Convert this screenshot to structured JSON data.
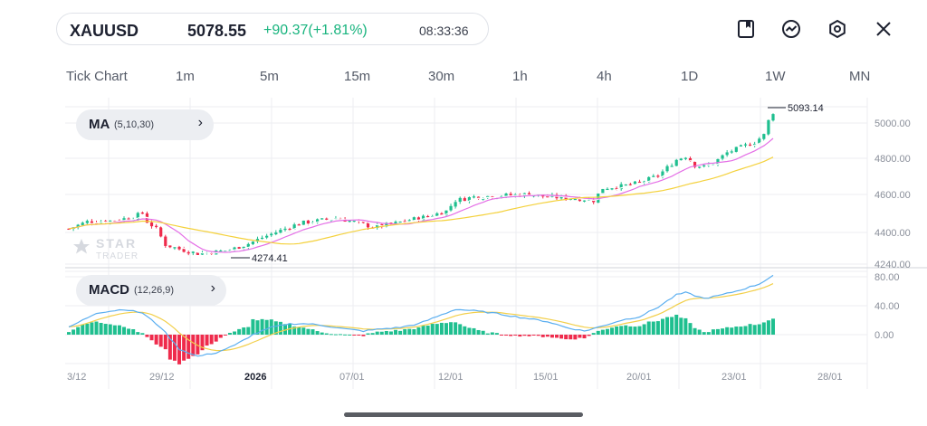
{
  "quote": {
    "symbol": "XAUUSD",
    "price": "5078.55",
    "change": "+90.37(+1.81%)",
    "time": "08:33:36",
    "change_color": "#18b47e"
  },
  "toolbar_icons": [
    "bookmark-icon",
    "indicator-icon",
    "settings-icon",
    "close-icon"
  ],
  "timeframes": [
    "Tick Chart",
    "1m",
    "5m",
    "15m",
    "30m",
    "1h",
    "4h",
    "1D",
    "1W",
    "MN"
  ],
  "watermark": {
    "brand": "STAR",
    "sub": "TRADER"
  },
  "ma_indicator": {
    "name": "MA",
    "params": "(5,10,30)"
  },
  "macd_indicator": {
    "name": "MACD",
    "params": "(12,26,9)"
  },
  "colors": {
    "up": "#1fbf8f",
    "down": "#ef2b4c",
    "ma5": "#ffffff",
    "ma10": "#e46ee6",
    "ma30": "#f4d13c",
    "macd_line": "#5aaef0",
    "signal_line": "#f2cf4a",
    "grid": "#eceef2"
  },
  "chart_data": {
    "type": "candlestick",
    "price_axis": {
      "ticks": [
        "5000.00",
        "4800.00",
        "4600.00",
        "4400.00",
        "4240.00"
      ],
      "range": [
        4230,
        5120
      ]
    },
    "macd_axis": {
      "ticks": [
        "80.00",
        "40.00",
        "0.00"
      ],
      "range": [
        -40,
        90
      ]
    },
    "date_labels": [
      "3/12",
      "29/12",
      "2026",
      "07/01",
      "12/01",
      "15/01",
      "20/01",
      "23/01",
      "28/01"
    ],
    "annotations": {
      "high": "5093.14",
      "low": "4274.41"
    },
    "price_path": [
      [
        0,
        4430
      ],
      [
        4,
        4470
      ],
      [
        9,
        4475
      ],
      [
        14,
        4495
      ],
      [
        16,
        4520
      ],
      [
        17,
        4470
      ],
      [
        19,
        4430
      ],
      [
        21,
        4340
      ],
      [
        24,
        4315
      ],
      [
        28,
        4290
      ],
      [
        32,
        4300
      ],
      [
        35,
        4310
      ],
      [
        39,
        4345
      ],
      [
        42,
        4380
      ],
      [
        46,
        4420
      ],
      [
        50,
        4460
      ],
      [
        54,
        4475
      ],
      [
        58,
        4490
      ],
      [
        62,
        4470
      ],
      [
        66,
        4440
      ],
      [
        70,
        4455
      ],
      [
        74,
        4480
      ],
      [
        78,
        4500
      ],
      [
        82,
        4530
      ],
      [
        84,
        4590
      ],
      [
        88,
        4610
      ],
      [
        92,
        4615
      ],
      [
        96,
        4620
      ],
      [
        100,
        4625
      ],
      [
        104,
        4610
      ],
      [
        108,
        4605
      ],
      [
        111,
        4600
      ],
      [
        114,
        4590
      ],
      [
        116,
        4660
      ],
      [
        120,
        4670
      ],
      [
        124,
        4690
      ],
      [
        128,
        4730
      ],
      [
        132,
        4820
      ],
      [
        134,
        4840
      ],
      [
        136,
        4790
      ],
      [
        138,
        4780
      ],
      [
        140,
        4800
      ],
      [
        143,
        4860
      ],
      [
        146,
        4890
      ],
      [
        149,
        4920
      ],
      [
        151,
        4960
      ],
      [
        152,
        5040
      ],
      [
        153,
        5078.55
      ]
    ],
    "macd_path": [
      [
        0,
        10
      ],
      [
        6,
        30
      ],
      [
        12,
        35
      ],
      [
        16,
        30
      ],
      [
        20,
        10
      ],
      [
        24,
        -20
      ],
      [
        28,
        -30
      ],
      [
        32,
        -25
      ],
      [
        36,
        -15
      ],
      [
        40,
        0
      ],
      [
        44,
        10
      ],
      [
        48,
        15
      ],
      [
        52,
        15
      ],
      [
        56,
        12
      ],
      [
        60,
        8
      ],
      [
        64,
        5
      ],
      [
        68,
        8
      ],
      [
        72,
        10
      ],
      [
        76,
        15
      ],
      [
        80,
        25
      ],
      [
        84,
        35
      ],
      [
        88,
        33
      ],
      [
        92,
        30
      ],
      [
        96,
        26
      ],
      [
        100,
        22
      ],
      [
        104,
        18
      ],
      [
        108,
        10
      ],
      [
        112,
        5
      ],
      [
        116,
        12
      ],
      [
        120,
        20
      ],
      [
        124,
        25
      ],
      [
        128,
        38
      ],
      [
        132,
        55
      ],
      [
        134,
        58
      ],
      [
        138,
        50
      ],
      [
        142,
        55
      ],
      [
        146,
        62
      ],
      [
        150,
        70
      ],
      [
        153,
        82
      ]
    ]
  }
}
